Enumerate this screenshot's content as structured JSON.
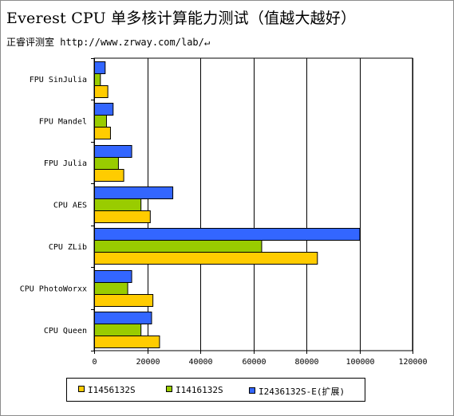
{
  "page": {
    "title": "Everest CPU 单多核计算能力测试（值越大越好）",
    "subtitle_source": "正睿评测室",
    "subtitle_url": "http://www.zrway.com/lab/",
    "subtitle_mark": "↵"
  },
  "colors": {
    "I1456132S": "#ffcc00",
    "I1416132S": "#99cc00",
    "I2436132S-E(扩展)": "#3366ff"
  },
  "chart_data": {
    "type": "bar",
    "orientation": "horizontal",
    "title": "Everest CPU 单多核计算能力测试（值越大越好）",
    "categories": [
      "FPU SinJulia",
      "FPU Mandel",
      "FPU Julia",
      "CPU AES",
      "CPU ZLib",
      "CPU PhotoWorxx",
      "CPU Queen"
    ],
    "series": [
      {
        "name": "I2436132S-E(扩展)",
        "values": [
          4000,
          7000,
          14000,
          29500,
          100000,
          14000,
          21500
        ]
      },
      {
        "name": "I1416132S",
        "values": [
          2200,
          4500,
          9000,
          17500,
          63000,
          12500,
          17500
        ]
      },
      {
        "name": "I1456132S",
        "values": [
          5000,
          6000,
          11000,
          21000,
          84000,
          22000,
          24500
        ]
      }
    ],
    "xlim": [
      0,
      120000
    ],
    "xticks": [
      0,
      20000,
      40000,
      60000,
      80000,
      100000,
      120000
    ],
    "xlabel": "",
    "ylabel": "",
    "grid": "vertical",
    "legend_position": "bottom",
    "legend_entries": [
      "I1456132S",
      "I1416132S",
      "I2436132S-E(扩展)"
    ]
  }
}
